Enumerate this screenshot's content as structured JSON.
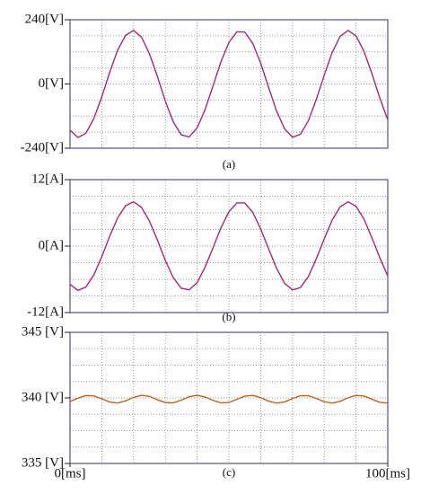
{
  "chart_data": [
    {
      "type": "line",
      "caption": "(a)",
      "x": [
        0,
        2.5,
        5,
        7.5,
        10,
        12.5,
        15,
        17.5,
        20,
        22.5,
        25,
        27.5,
        30,
        32.5,
        35,
        37.5,
        40,
        42.5,
        45,
        47.5,
        50,
        52.5,
        55,
        57.5,
        60,
        62.5,
        65,
        67.5,
        70,
        72.5,
        75,
        77.5,
        80,
        82.5,
        85,
        87.5,
        90,
        92.5,
        95,
        97.5,
        100
      ],
      "xlim": [
        0,
        100
      ],
      "ylim": [
        -240,
        240
      ],
      "yticks": [
        {
          "value": 240,
          "label": "240[V]"
        },
        {
          "value": 0,
          "label": "0[V]"
        },
        {
          "value": -240,
          "label": "-240[V]"
        }
      ],
      "series": [
        {
          "color": "#a3287c",
          "values": [
            -173,
            -200,
            -184,
            -129,
            -48,
            44,
            127,
            182,
            200,
            175,
            113,
            28,
            -64,
            -142,
            -190,
            -198,
            -164,
            -96,
            -7,
            83,
            155,
            195,
            194,
            152,
            78,
            -13,
            -101,
            -167,
            -199,
            -188,
            -138,
            -58,
            33,
            118,
            178,
            200,
            180,
            122,
            39,
            -53,
            -134
          ]
        }
      ]
    },
    {
      "type": "line",
      "caption": "(b)",
      "x": [
        0,
        2.5,
        5,
        7.5,
        10,
        12.5,
        15,
        17.5,
        20,
        22.5,
        25,
        27.5,
        30,
        32.5,
        35,
        37.5,
        40,
        42.5,
        45,
        47.5,
        50,
        52.5,
        55,
        57.5,
        60,
        62.5,
        65,
        67.5,
        70,
        72.5,
        75,
        77.5,
        80,
        82.5,
        85,
        87.5,
        90,
        92.5,
        95,
        97.5,
        100
      ],
      "xlim": [
        0,
        100
      ],
      "ylim": [
        -12,
        12
      ],
      "yticks": [
        {
          "value": 12,
          "label": "12[A]"
        },
        {
          "value": 0,
          "label": "0[A]"
        },
        {
          "value": -12,
          "label": "-12[A]"
        }
      ],
      "series": [
        {
          "color": "#a3287c",
          "values": [
            -6.9,
            -8.0,
            -7.4,
            -5.2,
            -1.9,
            1.8,
            5.1,
            7.3,
            8.0,
            7.0,
            4.5,
            1.1,
            -2.6,
            -5.7,
            -7.6,
            -7.9,
            -6.6,
            -3.8,
            -0.3,
            3.3,
            6.2,
            7.8,
            7.8,
            6.1,
            3.1,
            -0.5,
            -4.0,
            -6.7,
            -7.9,
            -7.5,
            -5.5,
            -2.3,
            1.3,
            4.7,
            7.1,
            8.0,
            7.2,
            4.9,
            1.5,
            -2.1,
            -5.4
          ]
        }
      ]
    },
    {
      "type": "line",
      "caption": "(c)",
      "x": [
        0,
        2.5,
        5,
        7.5,
        10,
        12.5,
        15,
        17.5,
        20,
        22.5,
        25,
        27.5,
        30,
        32.5,
        35,
        37.5,
        40,
        42.5,
        45,
        47.5,
        50,
        52.5,
        55,
        57.5,
        60,
        62.5,
        65,
        67.5,
        70,
        72.5,
        75,
        77.5,
        80,
        82.5,
        85,
        87.5,
        90,
        92.5,
        95,
        97.5,
        100
      ],
      "xlim": [
        0,
        100
      ],
      "xticks": [
        {
          "value": 0,
          "label": "0[ms]"
        },
        {
          "value": 100,
          "label": "100[ms]"
        }
      ],
      "ylim": [
        335,
        345
      ],
      "yticks": [
        {
          "value": 345,
          "label": "345 [V]"
        },
        {
          "value": 340,
          "label": "340 [V]"
        },
        {
          "value": 335,
          "label": "335 [V]"
        }
      ],
      "series": [
        {
          "color": "#c2611a",
          "values": [
            339.72,
            339.98,
            340.18,
            340.15,
            339.93,
            339.68,
            339.61,
            339.77,
            340.04,
            340.2,
            340.12,
            339.86,
            339.64,
            339.62,
            339.83,
            340.09,
            340.2,
            340.07,
            339.81,
            339.62,
            339.65,
            339.89,
            340.13,
            340.19,
            340.02,
            339.75,
            339.6,
            339.69,
            339.95,
            340.17,
            340.17,
            339.96,
            339.7,
            339.6,
            339.74,
            340.01,
            340.19,
            340.14,
            339.9,
            339.66,
            339.61
          ]
        }
      ]
    }
  ]
}
